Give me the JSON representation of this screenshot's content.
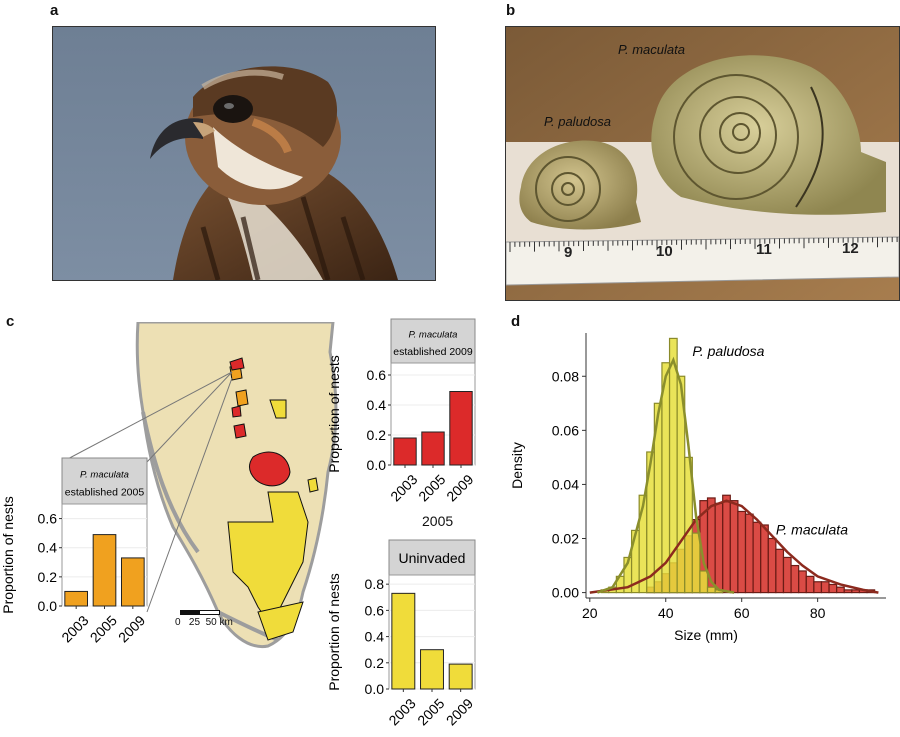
{
  "panels": {
    "a": "a",
    "b": "b",
    "c": "c",
    "d": "d"
  },
  "photo_b": {
    "label_large": "P. maculata",
    "label_small": "P. paludosa",
    "ruler_numbers": [
      "9",
      "10",
      "11",
      "12"
    ]
  },
  "map": {
    "scalebar_label": "0   25  50 km"
  },
  "colors": {
    "est2005": "#f0a11f",
    "est2009": "#dc2a2a",
    "uninvaded": "#f0dc3a",
    "land": "#ede0b4",
    "water": "#a8a8a8",
    "paludosa": "#e6df3c",
    "maculata": "#d42c25"
  },
  "chart_data": [
    {
      "type": "bar",
      "id": "est2005",
      "strip_line1": "P. maculata",
      "strip_line2": "established 2005",
      "categories": [
        "2003",
        "2005",
        "2009"
      ],
      "values": [
        0.1,
        0.49,
        0.33
      ],
      "ylabel": "Proportion of nests",
      "yticks": [
        "0.0",
        "0.2",
        "0.4",
        "0.6"
      ],
      "ylim": [
        0,
        0.7
      ]
    },
    {
      "type": "bar",
      "id": "est2009",
      "strip_line1": "P. maculata",
      "strip_line2": "established 2009",
      "categories": [
        "2003",
        "2005",
        "2009"
      ],
      "values": [
        0.18,
        0.22,
        0.49
      ],
      "ylabel": "Proportion of nests",
      "yticks": [
        "0.0",
        "0.2",
        "0.4",
        "0.6"
      ],
      "ylim": [
        0,
        0.68
      ]
    },
    {
      "type": "bar",
      "id": "uninvaded",
      "strip_line1": "Uninvaded",
      "categories": [
        "2003",
        "2005",
        "2009"
      ],
      "values": [
        0.73,
        0.3,
        0.19
      ],
      "ylabel": "Proportion of nests",
      "yticks": [
        "0.0",
        "0.2",
        "0.4",
        "0.6",
        "0.8"
      ],
      "ylim": [
        0,
        0.87
      ]
    },
    {
      "type": "area",
      "id": "size_density",
      "xlabel": "Size (mm)",
      "ylabel": "Density",
      "xticks": [
        "20",
        "40",
        "60",
        "80"
      ],
      "yticks": [
        "0.00",
        "0.02",
        "0.04",
        "0.06",
        "0.08"
      ],
      "xlim": [
        19,
        98
      ],
      "ylim": [
        -0.002,
        0.096
      ],
      "series": [
        {
          "name": "P. paludosa",
          "hist_x": [
            24,
            26,
            28,
            30,
            32,
            34,
            36,
            38,
            40,
            42,
            44,
            46,
            48,
            50,
            52,
            54
          ],
          "hist_y": [
            0.001,
            0.002,
            0.006,
            0.013,
            0.023,
            0.036,
            0.052,
            0.07,
            0.085,
            0.094,
            0.08,
            0.05,
            0.022,
            0.008,
            0.002,
            0.001
          ],
          "curve_x": [
            22,
            26,
            30,
            34,
            36,
            38,
            40,
            42,
            44,
            46,
            48,
            50,
            52,
            54,
            58
          ],
          "curve_y": [
            0,
            0.002,
            0.011,
            0.032,
            0.048,
            0.066,
            0.08,
            0.086,
            0.077,
            0.054,
            0.028,
            0.011,
            0.004,
            0.001,
            0
          ]
        },
        {
          "name": "P. maculata",
          "hist_x": [
            36,
            38,
            40,
            42,
            44,
            46,
            48,
            50,
            52,
            54,
            56,
            58,
            60,
            62,
            64,
            66,
            68,
            70,
            72,
            74,
            76,
            78,
            80,
            82,
            84,
            86,
            88,
            90,
            92,
            94
          ],
          "hist_y": [
            0.002,
            0.004,
            0.007,
            0.011,
            0.016,
            0.021,
            0.027,
            0.034,
            0.035,
            0.033,
            0.036,
            0.034,
            0.03,
            0.029,
            0.026,
            0.025,
            0.02,
            0.016,
            0.013,
            0.01,
            0.008,
            0.006,
            0.004,
            0.004,
            0.003,
            0.002,
            0.001,
            0.001,
            0.001,
            0.001
          ],
          "curve_x": [
            20,
            30,
            36,
            40,
            44,
            48,
            52,
            56,
            60,
            64,
            68,
            72,
            76,
            80,
            86,
            92,
            96
          ],
          "curve_y": [
            0,
            0.002,
            0.006,
            0.011,
            0.019,
            0.027,
            0.032,
            0.034,
            0.032,
            0.027,
            0.021,
            0.015,
            0.01,
            0.006,
            0.003,
            0.001,
            0
          ]
        }
      ]
    }
  ]
}
